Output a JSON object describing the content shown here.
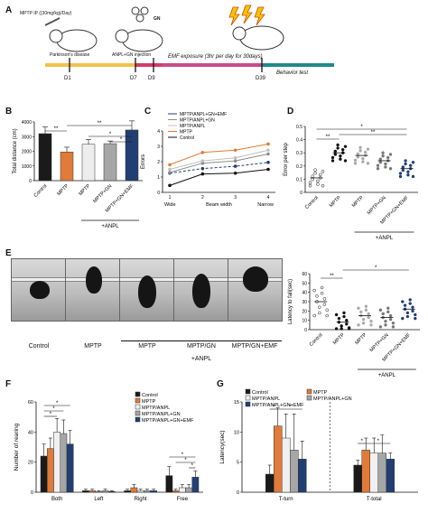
{
  "panels": {
    "A": {
      "label": "A",
      "dose": "MPTP IP ((30mg/kg)/Day)",
      "parkinson": "Parkinson's disease",
      "injection": "ANPL+GN injection",
      "gn": "GN",
      "emf": "EMF exposure (3hr per day for 30days)",
      "behavior": "Behavior test",
      "days": [
        "D1",
        "D7",
        "D9",
        "D39"
      ]
    },
    "B": {
      "label": "B"
    },
    "C": {
      "label": "C"
    },
    "D": {
      "label": "D"
    },
    "E": {
      "label": "E",
      "photo_labels": [
        "Control",
        "MPTP",
        "MPTP",
        "MPTP/GN",
        "MPTP/GN+EMF"
      ],
      "anpl": "+ANPL"
    },
    "F": {
      "label": "F"
    },
    "G": {
      "label": "G"
    }
  },
  "chart_data": [
    {
      "panel": "B",
      "type": "bar",
      "ylabel": "Total distance (cm)",
      "ylim": [
        0,
        4000
      ],
      "yticks": [
        0,
        1000,
        2000,
        3000,
        4000
      ],
      "categories": [
        "Control",
        "MPTP",
        "MPTP",
        "MPTP+GN",
        "MPTP+GN+EMF"
      ],
      "group_label": "+ANPL",
      "values": [
        3200,
        1950,
        2480,
        2520,
        3450
      ],
      "errors": [
        450,
        330,
        320,
        180,
        620
      ],
      "colors": [
        "#1a1a1a",
        "#e07b39",
        "#ededed",
        "#a6a6a6",
        "#223f73"
      ],
      "significance": [
        "**",
        "**",
        "*",
        "*"
      ]
    },
    {
      "panel": "C",
      "type": "line",
      "ylabel": "Errors",
      "xlabel": "Beam width",
      "x": [
        1,
        2,
        3,
        4
      ],
      "ylim": [
        0,
        4
      ],
      "yticks": [
        0,
        1,
        2,
        3,
        4
      ],
      "x_ends": [
        "Wide",
        "Narrow"
      ],
      "series": [
        {
          "name": "MPTP/ANPL+GN+EMF",
          "values": [
            1.25,
            1.55,
            1.7,
            1.95
          ],
          "color": "#223f73"
        },
        {
          "name": "MPTP/ANPL+GN",
          "values": [
            1.3,
            1.9,
            2.05,
            2.5
          ],
          "color": "#8c8c8c"
        },
        {
          "name": "MPTP/ANPL",
          "values": [
            1.5,
            2.05,
            2.25,
            2.75
          ],
          "color": "#bfbfbf"
        },
        {
          "name": "MPTP",
          "values": [
            1.8,
            2.6,
            2.75,
            3.15
          ],
          "color": "#e07b39"
        },
        {
          "name": "Control",
          "values": [
            0.45,
            1.2,
            1.25,
            1.5
          ],
          "color": "#111111"
        }
      ]
    },
    {
      "panel": "D",
      "type": "scatter",
      "ylabel": "Error per step",
      "ylim": [
        0,
        0.5
      ],
      "yticks": [
        0.0,
        0.1,
        0.2,
        0.3,
        0.4,
        0.5
      ],
      "categories": [
        "Control",
        "MPTP",
        "MPTP",
        "MPTP+GN",
        "MPTP+GN+EMF"
      ],
      "group_label": "+ANPL",
      "means": [
        0.11,
        0.3,
        0.28,
        0.24,
        0.18
      ],
      "significance": [
        "**",
        "*",
        "**"
      ]
    },
    {
      "panel": "E",
      "type": "scatter",
      "ylabel": "Latency to fall(sec)",
      "ylim": [
        0,
        60
      ],
      "yticks": [
        0,
        10,
        20,
        30,
        40,
        50,
        60
      ],
      "categories": [
        "Control",
        "MPTP",
        "MPTP",
        "MPTP+GN",
        "MPTP+GN+EMF"
      ],
      "group_label": "+ANPL",
      "means": [
        30,
        8,
        15,
        13,
        22
      ],
      "significance": [
        "**",
        "*"
      ]
    },
    {
      "panel": "F",
      "type": "bar",
      "ylabel": "Number of rearing",
      "ylim": [
        0,
        60
      ],
      "yticks": [
        0,
        20,
        40,
        60
      ],
      "categories": [
        "Both",
        "Left",
        "Right",
        "Free"
      ],
      "series": [
        {
          "name": "Control",
          "values": [
            24,
            1,
            1,
            11
          ],
          "color": "#1a1a1a"
        },
        {
          "name": "MPTP",
          "values": [
            29,
            1,
            3,
            1
          ],
          "color": "#e07b39"
        },
        {
          "name": "MPTP/ANPL",
          "values": [
            40,
            0.5,
            1,
            3
          ],
          "color": "#f0f0f0"
        },
        {
          "name": "MPTP/ANPL+GN",
          "values": [
            39,
            1,
            1,
            3
          ],
          "color": "#a6a6a6"
        },
        {
          "name": "MPTP/ANPL+GN+EMF",
          "values": [
            32,
            0.5,
            1,
            10
          ],
          "color": "#223f73"
        }
      ],
      "errors": [
        [
          8,
          1,
          1,
          6
        ],
        [
          7,
          1,
          2,
          1
        ],
        [
          9,
          0.5,
          1,
          2
        ],
        [
          9,
          1,
          1,
          2
        ],
        [
          9,
          0.5,
          1,
          4
        ]
      ],
      "significance": [
        "*",
        "*",
        "*",
        "*",
        "*",
        "*"
      ]
    },
    {
      "panel": "G",
      "type": "bar",
      "ylabel": "Latency(sec)",
      "ylim": [
        0,
        15
      ],
      "yticks": [
        0,
        5,
        10,
        15
      ],
      "categories": [
        "T-turn",
        "T-total"
      ],
      "series": [
        {
          "name": "Control",
          "values": [
            3,
            4.5
          ],
          "color": "#1a1a1a"
        },
        {
          "name": "MPTP",
          "values": [
            11,
            7
          ],
          "color": "#e07b39"
        },
        {
          "name": "MPTP/ANPL",
          "values": [
            9,
            6.5
          ],
          "color": "#f0f0f0"
        },
        {
          "name": "MPTP/ANPL+GN",
          "values": [
            7,
            6.5
          ],
          "color": "#a6a6a6"
        },
        {
          "name": "MPTP/ANPL+GN+EMF",
          "values": [
            5.5,
            5.5
          ],
          "color": "#223f73"
        }
      ],
      "errors": [
        [
          1.5,
          0.8
        ],
        [
          3,
          2
        ],
        [
          4,
          2.5
        ],
        [
          6,
          3
        ],
        [
          3,
          1
        ]
      ],
      "significance": [
        "*",
        "*",
        "*",
        "*"
      ]
    }
  ]
}
